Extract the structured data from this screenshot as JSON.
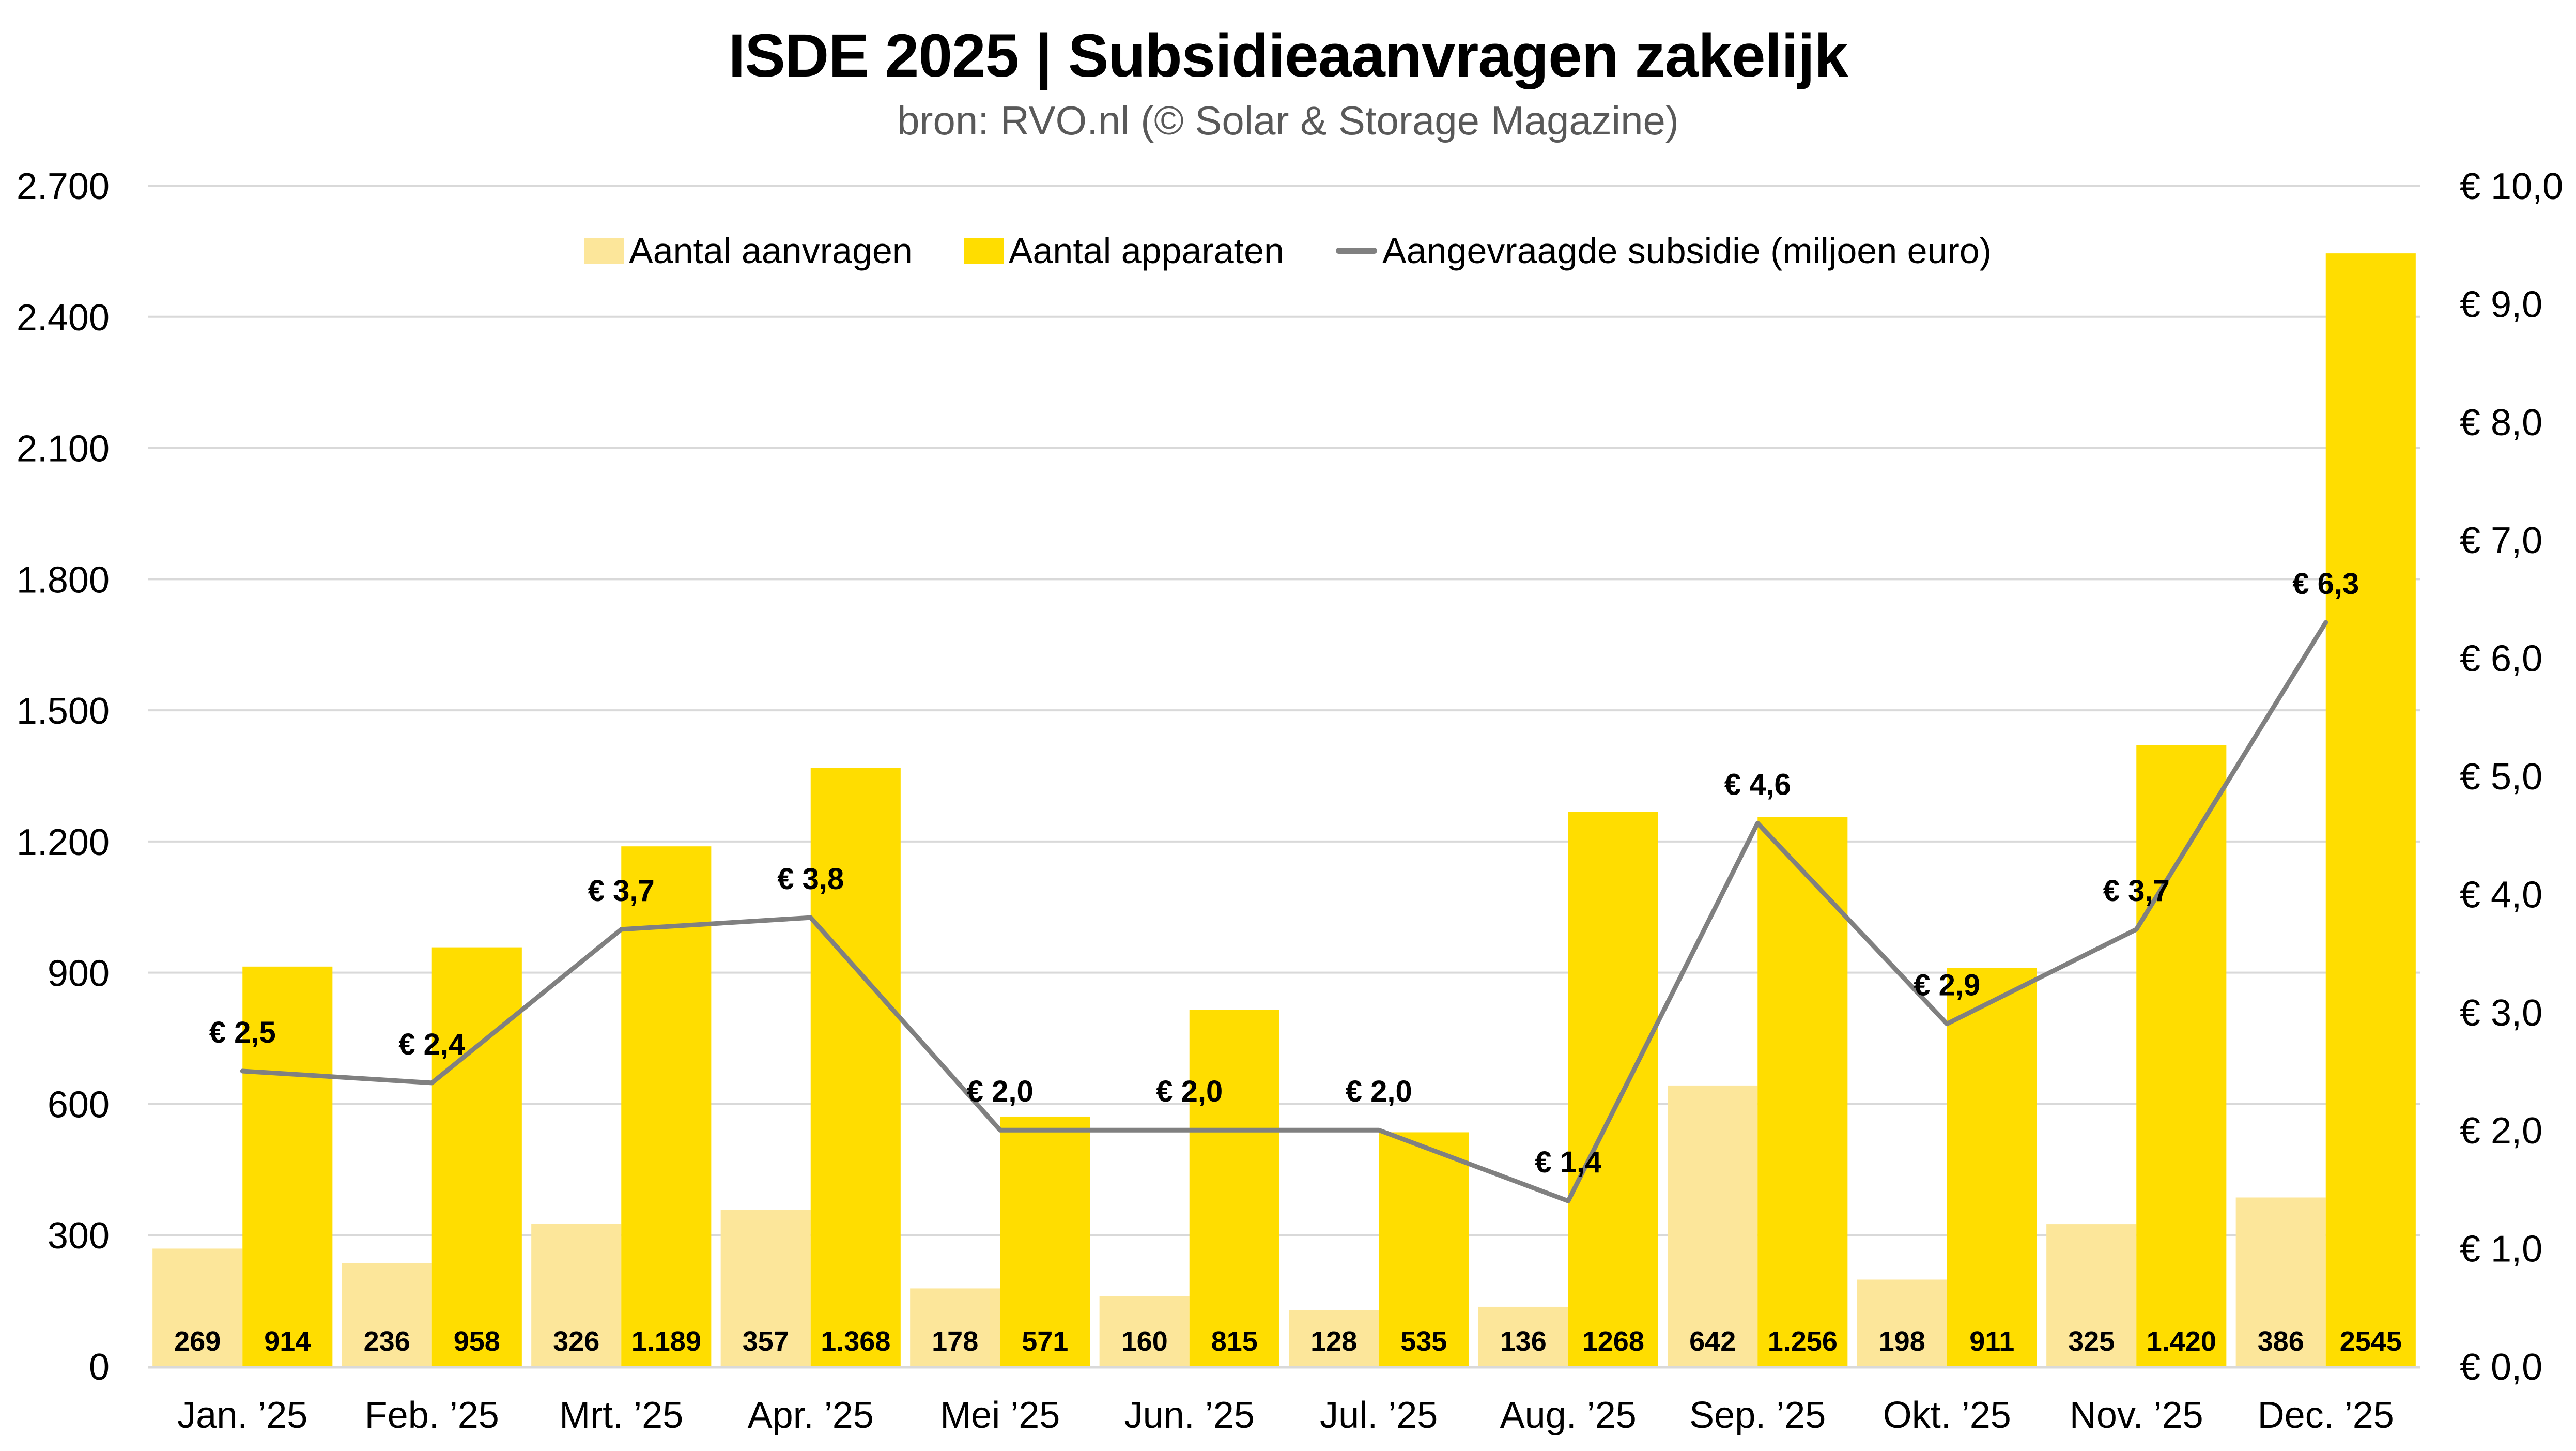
{
  "chart_data": {
    "type": "bar",
    "title": "ISDE 2025 | Subsidieaanvragen zakelijk",
    "subtitle": "bron: RVO.nl (© Solar & Storage Magazine)",
    "categories": [
      "Jan. ’25",
      "Feb. ’25",
      "Mrt. ’25",
      "Apr. ’25",
      "Mei ’25",
      "Jun. ’25",
      "Jul. ’25",
      "Aug. ’25",
      "Sep. ’25",
      "Okt. ’25",
      "Nov. ’25",
      "Dec. ’25"
    ],
    "series": [
      {
        "name": "Aantal aanvragen",
        "type": "bar",
        "axis": "left",
        "color": "#FCE69A",
        "values": [
          269,
          236,
          326,
          357,
          178,
          160,
          128,
          136,
          642,
          198,
          325,
          386
        ],
        "labels": [
          "269",
          "236",
          "326",
          "357",
          "178",
          "160",
          "128",
          "136",
          "642",
          "198",
          "325",
          "386"
        ]
      },
      {
        "name": "Aantal apparaten",
        "type": "bar",
        "axis": "left",
        "color": "#FFDD00",
        "values": [
          914,
          958,
          1189,
          1368,
          571,
          815,
          535,
          1268,
          1256,
          911,
          1420,
          2545
        ],
        "labels": [
          "914",
          "958",
          "1.189",
          "1.368",
          "571",
          "815",
          "535",
          "1268",
          "1.256",
          "911",
          "1.420",
          "2545"
        ]
      },
      {
        "name": "Aangevraagde subsidie (miljoen euro)",
        "type": "line",
        "axis": "right",
        "color": "#808080",
        "values": [
          2.5,
          2.4,
          3.7,
          3.8,
          2.0,
          2.0,
          2.0,
          1.4,
          4.6,
          2.9,
          3.7,
          6.3
        ],
        "labels": [
          "€ 2,5",
          "€ 2,4",
          "€ 3,7",
          "€ 3,8",
          "€ 2,0",
          "€ 2,0",
          "€ 2,0",
          "€ 1,4",
          "€ 4,6",
          "€ 2,9",
          "€ 3,7",
          "€ 6,3"
        ]
      }
    ],
    "y_left": {
      "range": [
        0,
        2700
      ],
      "ticks": [
        0,
        300,
        600,
        900,
        1200,
        1500,
        1800,
        2100,
        2400,
        2700
      ],
      "tick_labels": [
        "0",
        "300",
        "600",
        "900",
        "1.200",
        "1.500",
        "1.800",
        "2.100",
        "2.400",
        "2.700"
      ]
    },
    "y_right": {
      "range": [
        0,
        10
      ],
      "ticks": [
        0,
        1,
        2,
        3,
        4,
        5,
        6,
        7,
        8,
        9,
        10
      ],
      "tick_labels": [
        "€ 0,0",
        "€ 1,0",
        "€ 2,0",
        "€ 3,0",
        "€ 4,0",
        "€ 5,0",
        "€ 6,0",
        "€ 7,0",
        "€ 8,0",
        "€ 9,0",
        "€ 10,0"
      ]
    },
    "grid": true,
    "legend_position": "top-center",
    "xlabel": "",
    "ylabel": ""
  },
  "colors": {
    "grid": "#D9D9D9",
    "axis_text": "#000000",
    "subtitle": "#595959"
  }
}
